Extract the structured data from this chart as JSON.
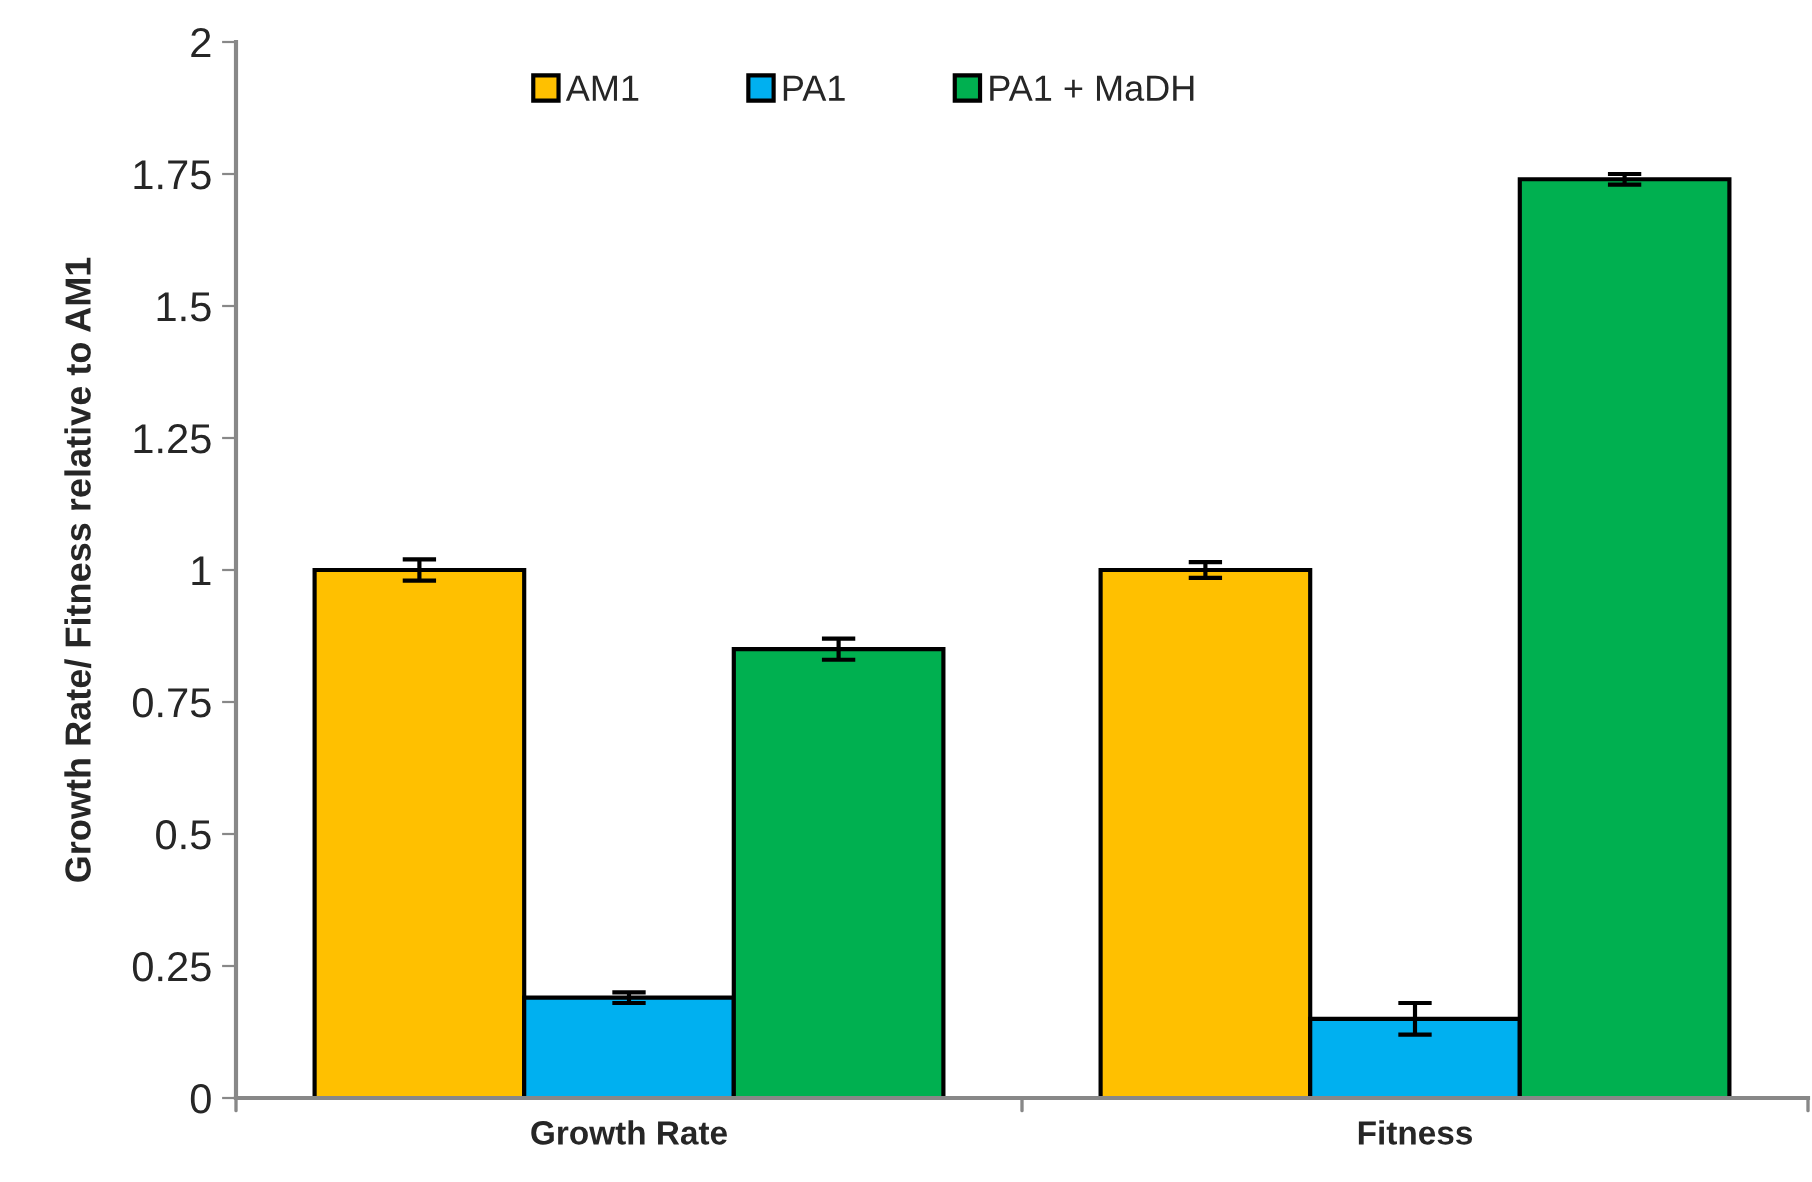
{
  "chart_data": {
    "type": "bar",
    "ylabel": "Growth Rate/ Fitness relative to AM1",
    "categories": [
      "Growth Rate",
      "Fitness"
    ],
    "series": [
      {
        "name": "AM1",
        "color": "#ffc000",
        "values": [
          1.0,
          1.0
        ],
        "errors": [
          0.02,
          0.015
        ]
      },
      {
        "name": "PA1",
        "color": "#00b0f0",
        "values": [
          0.19,
          0.15
        ],
        "errors": [
          0.01,
          0.03
        ]
      },
      {
        "name": "PA1 + MaDH",
        "color": "#00b050",
        "values": [
          0.85,
          1.74
        ],
        "errors": [
          0.02,
          0.01
        ]
      }
    ],
    "ylim": [
      0,
      2
    ],
    "yticks": [
      0,
      0.25,
      0.5,
      0.75,
      1,
      1.25,
      1.5,
      1.75,
      2
    ],
    "grid": false,
    "legend": "top"
  }
}
